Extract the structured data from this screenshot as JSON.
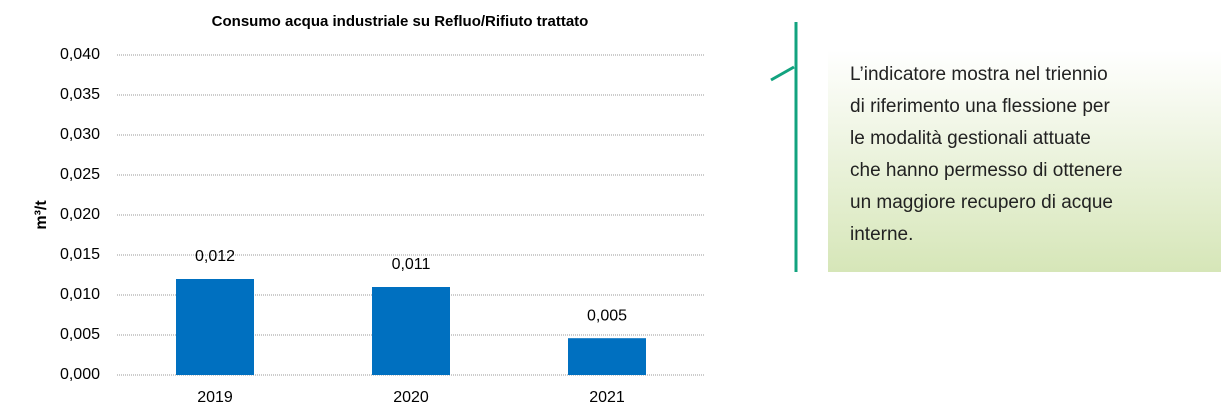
{
  "chart_data": {
    "type": "bar",
    "title": "Consumo acqua industriale su Refluo/Rifiuto trattato",
    "ylabel": "m³/t",
    "categories": [
      "2019",
      "2020",
      "2021"
    ],
    "values": [
      0.012,
      0.011,
      0.0046
    ],
    "value_labels": [
      "0,012",
      "0,011",
      "0,005"
    ],
    "color": "#0070c0",
    "ylim": [
      0,
      0.04
    ],
    "yticks": [
      {
        "value": 0,
        "label": "0,000"
      },
      {
        "value": 0.005,
        "label": "0,005"
      },
      {
        "value": 0.01,
        "label": "0,010"
      },
      {
        "value": 0.015,
        "label": "0,015"
      },
      {
        "value": 0.02,
        "label": "0,020"
      },
      {
        "value": 0.025,
        "label": "0,025"
      },
      {
        "value": 0.03,
        "label": "0,030"
      },
      {
        "value": 0.035,
        "label": "0,035"
      },
      {
        "value": 0.04,
        "label": "0,040"
      }
    ],
    "grid": true
  },
  "callout": {
    "lines": [
      "L’indicatore mostra nel triennio",
      "di riferimento una flessione per",
      "le modalità gestionali attuate",
      "che hanno permesso di ottenere",
      "un maggiore recupero di acque",
      "interne."
    ]
  }
}
